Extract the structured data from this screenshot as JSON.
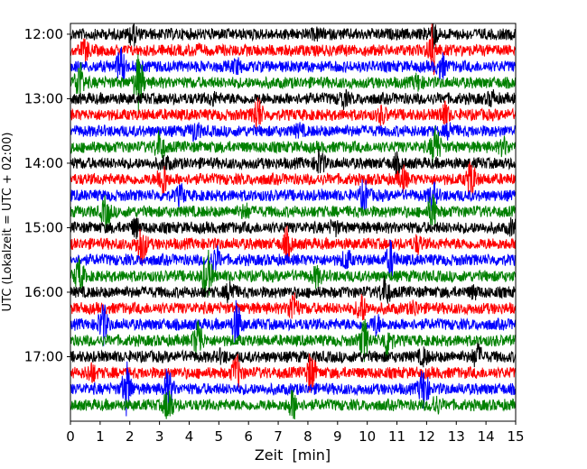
{
  "chart_data": {
    "type": "line",
    "title": "",
    "xlabel": "Zeit  [min]",
    "ylabel": "UTC (Lokalzeit = UTC + 02:00)",
    "xlim": [
      0,
      15
    ],
    "x_ticks": [
      0,
      1,
      2,
      3,
      4,
      5,
      6,
      7,
      8,
      9,
      10,
      11,
      12,
      13,
      14,
      15
    ],
    "x_tick_labels": [
      "0",
      "1",
      "2",
      "3",
      "4",
      "5",
      "6",
      "7",
      "8",
      "9",
      "10",
      "11",
      "12",
      "13",
      "14",
      "15"
    ],
    "y_range_utc": [
      "11:50",
      "18:00"
    ],
    "y_ticks": [
      "12:00",
      "13:00",
      "14:00",
      "15:00",
      "16:00",
      "17:00"
    ],
    "trace_interval_min": 15,
    "trace_color_cycle": [
      "#000000",
      "#ff0000",
      "#0000ff",
      "#008000"
    ],
    "traces": [
      {
        "start_utc": "12:00",
        "color": "#000000",
        "bursts": [
          {
            "t": 2.1,
            "amp": 1.8
          },
          {
            "t": 8.3,
            "amp": 1.2
          },
          {
            "t": 12.2,
            "amp": 2.0
          }
        ]
      },
      {
        "start_utc": "12:15",
        "color": "#ff0000",
        "bursts": [
          {
            "t": 0.5,
            "amp": 1.6
          },
          {
            "t": 4.2,
            "amp": 1.2
          },
          {
            "t": 12.2,
            "amp": 2.8
          }
        ]
      },
      {
        "start_utc": "12:30",
        "color": "#0000ff",
        "bursts": [
          {
            "t": 1.7,
            "amp": 2.2
          },
          {
            "t": 5.6,
            "amp": 1.4
          },
          {
            "t": 12.5,
            "amp": 1.8
          }
        ]
      },
      {
        "start_utc": "12:45",
        "color": "#008000",
        "bursts": [
          {
            "t": 0.3,
            "amp": 2.4
          },
          {
            "t": 2.3,
            "amp": 3.0
          },
          {
            "t": 11.7,
            "amp": 1.5
          }
        ]
      },
      {
        "start_utc": "13:00",
        "color": "#000000",
        "bursts": [
          {
            "t": 4.8,
            "amp": 1.3
          },
          {
            "t": 9.2,
            "amp": 1.5
          },
          {
            "t": 14.2,
            "amp": 1.4
          }
        ]
      },
      {
        "start_utc": "13:15",
        "color": "#ff0000",
        "bursts": [
          {
            "t": 6.3,
            "amp": 2.2
          },
          {
            "t": 10.5,
            "amp": 1.5
          },
          {
            "t": 12.6,
            "amp": 1.8
          }
        ]
      },
      {
        "start_utc": "13:30",
        "color": "#0000ff",
        "bursts": [
          {
            "t": 4.2,
            "amp": 1.6
          },
          {
            "t": 7.7,
            "amp": 1.3
          },
          {
            "t": 12.8,
            "amp": 1.5
          }
        ]
      },
      {
        "start_utc": "13:45",
        "color": "#008000",
        "bursts": [
          {
            "t": 3.0,
            "amp": 2.0
          },
          {
            "t": 12.3,
            "amp": 2.4
          },
          {
            "t": 14.6,
            "amp": 1.5
          }
        ]
      },
      {
        "start_utc": "14:00",
        "color": "#000000",
        "bursts": [
          {
            "t": 3.2,
            "amp": 1.4
          },
          {
            "t": 8.4,
            "amp": 1.8
          },
          {
            "t": 11.0,
            "amp": 1.5
          }
        ]
      },
      {
        "start_utc": "14:15",
        "color": "#ff0000",
        "bursts": [
          {
            "t": 3.1,
            "amp": 2.3
          },
          {
            "t": 11.2,
            "amp": 1.7
          },
          {
            "t": 13.5,
            "amp": 2.3
          }
        ]
      },
      {
        "start_utc": "14:30",
        "color": "#0000ff",
        "bursts": [
          {
            "t": 3.7,
            "amp": 1.6
          },
          {
            "t": 9.9,
            "amp": 2.0
          },
          {
            "t": 12.2,
            "amp": 1.8
          }
        ]
      },
      {
        "start_utc": "14:45",
        "color": "#008000",
        "bursts": [
          {
            "t": 1.2,
            "amp": 2.0
          },
          {
            "t": 5.9,
            "amp": 1.4
          },
          {
            "t": 12.2,
            "amp": 2.2
          }
        ]
      },
      {
        "start_utc": "15:00",
        "color": "#000000",
        "bursts": [
          {
            "t": 2.2,
            "amp": 1.6
          },
          {
            "t": 8.9,
            "amp": 1.4
          },
          {
            "t": 14.9,
            "amp": 1.5
          }
        ]
      },
      {
        "start_utc": "15:15",
        "color": "#ff0000",
        "bursts": [
          {
            "t": 2.4,
            "amp": 2.6
          },
          {
            "t": 7.3,
            "amp": 2.0
          },
          {
            "t": 11.7,
            "amp": 1.5
          }
        ]
      },
      {
        "start_utc": "15:30",
        "color": "#0000ff",
        "bursts": [
          {
            "t": 4.9,
            "amp": 1.8
          },
          {
            "t": 9.3,
            "amp": 1.6
          },
          {
            "t": 10.8,
            "amp": 2.2
          }
        ]
      },
      {
        "start_utc": "15:45",
        "color": "#008000",
        "bursts": [
          {
            "t": 0.3,
            "amp": 2.2
          },
          {
            "t": 4.6,
            "amp": 2.8
          },
          {
            "t": 8.3,
            "amp": 1.6
          }
        ]
      },
      {
        "start_utc": "16:00",
        "color": "#000000",
        "bursts": [
          {
            "t": 5.4,
            "amp": 1.8
          },
          {
            "t": 10.6,
            "amp": 2.0
          },
          {
            "t": 13.6,
            "amp": 1.3
          }
        ]
      },
      {
        "start_utc": "16:15",
        "color": "#ff0000",
        "bursts": [
          {
            "t": 7.5,
            "amp": 2.2
          },
          {
            "t": 9.8,
            "amp": 2.0
          },
          {
            "t": 11.6,
            "amp": 1.4
          }
        ]
      },
      {
        "start_utc": "16:30",
        "color": "#0000ff",
        "bursts": [
          {
            "t": 1.1,
            "amp": 2.4
          },
          {
            "t": 5.6,
            "amp": 2.5
          },
          {
            "t": 10.3,
            "amp": 1.6
          }
        ]
      },
      {
        "start_utc": "16:45",
        "color": "#008000",
        "bursts": [
          {
            "t": 4.3,
            "amp": 2.6
          },
          {
            "t": 9.9,
            "amp": 2.4
          },
          {
            "t": 10.7,
            "amp": 2.2
          }
        ]
      },
      {
        "start_utc": "17:00",
        "color": "#000000",
        "bursts": [
          {
            "t": 5.1,
            "amp": 1.3
          },
          {
            "t": 11.9,
            "amp": 1.5
          },
          {
            "t": 13.7,
            "amp": 1.8
          }
        ]
      },
      {
        "start_utc": "17:15",
        "color": "#ff0000",
        "bursts": [
          {
            "t": 0.7,
            "amp": 1.6
          },
          {
            "t": 5.6,
            "amp": 2.2
          },
          {
            "t": 8.1,
            "amp": 2.4
          }
        ]
      },
      {
        "start_utc": "17:30",
        "color": "#0000ff",
        "bursts": [
          {
            "t": 1.9,
            "amp": 2.8
          },
          {
            "t": 3.3,
            "amp": 2.4
          },
          {
            "t": 11.9,
            "amp": 2.6
          }
        ]
      },
      {
        "start_utc": "17:45",
        "color": "#008000",
        "bursts": [
          {
            "t": 3.3,
            "amp": 2.2
          },
          {
            "t": 7.5,
            "amp": 2.0
          },
          {
            "t": 12.3,
            "amp": 1.6
          }
        ]
      }
    ]
  }
}
